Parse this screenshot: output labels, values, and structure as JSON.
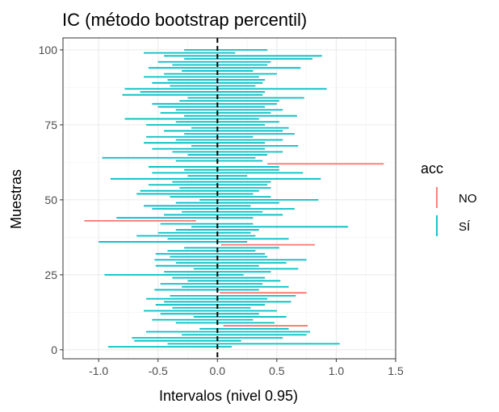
{
  "chart_data": {
    "type": "interval",
    "title": "IC (método bootstrap percentil)",
    "xlabel": "Intervalos (nivel 0.95)",
    "ylabel": "Muestras",
    "xlim": [
      -1.3,
      1.5
    ],
    "ylim": [
      -3,
      104
    ],
    "x_ticks": [
      -1.0,
      -0.5,
      0.0,
      0.5,
      1.0,
      1.5
    ],
    "x_tick_labels": [
      "-1.0",
      "-0.5",
      "0.0",
      "0.5",
      "1.0",
      "1.5"
    ],
    "y_ticks": [
      0,
      25,
      50,
      75,
      100
    ],
    "y_tick_labels": [
      "0",
      "25",
      "50",
      "75",
      "100"
    ],
    "reference_line_x": 0.0,
    "grid": true,
    "legend": {
      "title": "acc",
      "position": "right",
      "entries": [
        {
          "label": "NO",
          "color": "#F8766D"
        },
        {
          "label": "SÍ",
          "color": "#00BFC4"
        }
      ]
    },
    "intervals": [
      {
        "sample": 1,
        "low": -0.92,
        "high": 0.12,
        "acc": "SÍ"
      },
      {
        "sample": 2,
        "low": -0.42,
        "high": 1.03,
        "acc": "SÍ"
      },
      {
        "sample": 3,
        "low": -0.7,
        "high": 0.2,
        "acc": "SÍ"
      },
      {
        "sample": 4,
        "low": -0.72,
        "high": 0.55,
        "acc": "SÍ"
      },
      {
        "sample": 5,
        "low": -0.3,
        "high": 0.75,
        "acc": "SÍ"
      },
      {
        "sample": 6,
        "low": -0.6,
        "high": 0.78,
        "acc": "SÍ"
      },
      {
        "sample": 7,
        "low": -0.15,
        "high": 0.6,
        "acc": "SÍ"
      },
      {
        "sample": 8,
        "low": 0.05,
        "high": 0.76,
        "acc": "NO"
      },
      {
        "sample": 9,
        "low": -0.35,
        "high": 0.48,
        "acc": "SÍ"
      },
      {
        "sample": 10,
        "low": -0.55,
        "high": 0.3,
        "acc": "SÍ"
      },
      {
        "sample": 11,
        "low": -0.2,
        "high": 0.58,
        "acc": "SÍ"
      },
      {
        "sample": 12,
        "low": -0.48,
        "high": 0.35,
        "acc": "SÍ"
      },
      {
        "sample": 13,
        "low": -0.62,
        "high": 0.5,
        "acc": "SÍ"
      },
      {
        "sample": 14,
        "low": -0.38,
        "high": 0.28,
        "acc": "SÍ"
      },
      {
        "sample": 15,
        "low": -0.52,
        "high": 0.4,
        "acc": "SÍ"
      },
      {
        "sample": 16,
        "low": -0.45,
        "high": 0.62,
        "acc": "SÍ"
      },
      {
        "sample": 17,
        "low": -0.6,
        "high": 0.42,
        "acc": "SÍ"
      },
      {
        "sample": 18,
        "low": -0.4,
        "high": 0.66,
        "acc": "SÍ"
      },
      {
        "sample": 19,
        "low": 0.02,
        "high": 0.75,
        "acc": "NO"
      },
      {
        "sample": 20,
        "low": -0.53,
        "high": 0.35,
        "acc": "SÍ"
      },
      {
        "sample": 21,
        "low": -0.3,
        "high": 0.6,
        "acc": "SÍ"
      },
      {
        "sample": 22,
        "low": -0.48,
        "high": 0.38,
        "acc": "SÍ"
      },
      {
        "sample": 23,
        "low": -0.25,
        "high": 0.53,
        "acc": "SÍ"
      },
      {
        "sample": 24,
        "low": -0.38,
        "high": 0.4,
        "acc": "SÍ"
      },
      {
        "sample": 25,
        "low": -0.95,
        "high": 0.22,
        "acc": "SÍ"
      },
      {
        "sample": 26,
        "low": -0.45,
        "high": 0.45,
        "acc": "SÍ"
      },
      {
        "sample": 27,
        "low": -0.2,
        "high": 0.68,
        "acc": "SÍ"
      },
      {
        "sample": 28,
        "low": -0.52,
        "high": 0.35,
        "acc": "SÍ"
      },
      {
        "sample": 29,
        "low": -0.35,
        "high": 0.58,
        "acc": "SÍ"
      },
      {
        "sample": 30,
        "low": -0.53,
        "high": 0.75,
        "acc": "SÍ"
      },
      {
        "sample": 31,
        "low": -0.4,
        "high": 0.42,
        "acc": "SÍ"
      },
      {
        "sample": 32,
        "low": -0.52,
        "high": 0.4,
        "acc": "SÍ"
      },
      {
        "sample": 33,
        "low": -0.42,
        "high": 0.32,
        "acc": "SÍ"
      },
      {
        "sample": 34,
        "low": -0.28,
        "high": 0.52,
        "acc": "SÍ"
      },
      {
        "sample": 35,
        "low": 0.03,
        "high": 0.82,
        "acc": "NO"
      },
      {
        "sample": 36,
        "low": -1.0,
        "high": 0.25,
        "acc": "SÍ"
      },
      {
        "sample": 37,
        "low": -0.42,
        "high": 0.6,
        "acc": "SÍ"
      },
      {
        "sample": 38,
        "low": -0.68,
        "high": 0.32,
        "acc": "SÍ"
      },
      {
        "sample": 39,
        "low": -0.5,
        "high": 0.28,
        "acc": "SÍ"
      },
      {
        "sample": 40,
        "low": -0.35,
        "high": 0.35,
        "acc": "SÍ"
      },
      {
        "sample": 41,
        "low": -0.22,
        "high": 1.1,
        "acc": "SÍ"
      },
      {
        "sample": 42,
        "low": -0.48,
        "high": 0.3,
        "acc": "SÍ"
      },
      {
        "sample": 43,
        "low": -1.12,
        "high": -0.18,
        "acc": "NO"
      },
      {
        "sample": 44,
        "low": -0.85,
        "high": 0.3,
        "acc": "SÍ"
      },
      {
        "sample": 45,
        "low": -0.45,
        "high": 0.55,
        "acc": "SÍ"
      },
      {
        "sample": 46,
        "low": -0.3,
        "high": 0.38,
        "acc": "SÍ"
      },
      {
        "sample": 47,
        "low": -0.55,
        "high": 0.65,
        "acc": "SÍ"
      },
      {
        "sample": 48,
        "low": -0.62,
        "high": 0.28,
        "acc": "SÍ"
      },
      {
        "sample": 49,
        "low": -0.35,
        "high": 0.52,
        "acc": "SÍ"
      },
      {
        "sample": 50,
        "low": -0.15,
        "high": 0.85,
        "acc": "SÍ"
      },
      {
        "sample": 51,
        "low": -0.4,
        "high": 0.45,
        "acc": "SÍ"
      },
      {
        "sample": 52,
        "low": -0.68,
        "high": 0.3,
        "acc": "SÍ"
      },
      {
        "sample": 53,
        "low": -0.65,
        "high": 0.35,
        "acc": "SÍ"
      },
      {
        "sample": 54,
        "low": -0.32,
        "high": 0.45,
        "acc": "SÍ"
      },
      {
        "sample": 55,
        "low": -0.58,
        "high": 0.42,
        "acc": "SÍ"
      },
      {
        "sample": 56,
        "low": -0.38,
        "high": 0.45,
        "acc": "SÍ"
      },
      {
        "sample": 57,
        "low": -0.9,
        "high": 0.87,
        "acc": "SÍ"
      },
      {
        "sample": 58,
        "low": -0.25,
        "high": 0.25,
        "acc": "SÍ"
      },
      {
        "sample": 59,
        "low": -0.55,
        "high": 0.72,
        "acc": "SÍ"
      },
      {
        "sample": 60,
        "low": -0.28,
        "high": 0.52,
        "acc": "SÍ"
      },
      {
        "sample": 61,
        "low": -0.58,
        "high": 0.52,
        "acc": "SÍ"
      },
      {
        "sample": 62,
        "low": 0.42,
        "high": 1.4,
        "acc": "NO"
      },
      {
        "sample": 63,
        "low": -0.35,
        "high": 0.38,
        "acc": "SÍ"
      },
      {
        "sample": 64,
        "low": -0.97,
        "high": 0.32,
        "acc": "SÍ"
      },
      {
        "sample": 65,
        "low": -0.25,
        "high": 0.42,
        "acc": "SÍ"
      },
      {
        "sample": 66,
        "low": -0.38,
        "high": 0.55,
        "acc": "SÍ"
      },
      {
        "sample": 67,
        "low": -0.55,
        "high": 0.4,
        "acc": "SÍ"
      },
      {
        "sample": 68,
        "low": -0.22,
        "high": 0.68,
        "acc": "SÍ"
      },
      {
        "sample": 69,
        "low": -0.62,
        "high": 0.4,
        "acc": "SÍ"
      },
      {
        "sample": 70,
        "low": -0.35,
        "high": 0.55,
        "acc": "SÍ"
      },
      {
        "sample": 71,
        "low": -0.6,
        "high": 0.3,
        "acc": "SÍ"
      },
      {
        "sample": 72,
        "low": -0.28,
        "high": 0.65,
        "acc": "SÍ"
      },
      {
        "sample": 73,
        "low": -0.45,
        "high": 0.55,
        "acc": "SÍ"
      },
      {
        "sample": 74,
        "low": -0.22,
        "high": 0.6,
        "acc": "SÍ"
      },
      {
        "sample": 75,
        "low": -0.6,
        "high": 0.4,
        "acc": "SÍ"
      },
      {
        "sample": 76,
        "low": -0.35,
        "high": 0.52,
        "acc": "SÍ"
      },
      {
        "sample": 77,
        "low": -0.78,
        "high": 0.35,
        "acc": "SÍ"
      },
      {
        "sample": 78,
        "low": -0.28,
        "high": 0.67,
        "acc": "SÍ"
      },
      {
        "sample": 79,
        "low": -0.48,
        "high": 0.45,
        "acc": "SÍ"
      },
      {
        "sample": 80,
        "low": -0.35,
        "high": 0.55,
        "acc": "SÍ"
      },
      {
        "sample": 81,
        "low": -0.5,
        "high": 0.4,
        "acc": "SÍ"
      },
      {
        "sample": 82,
        "low": -0.55,
        "high": 0.5,
        "acc": "SÍ"
      },
      {
        "sample": 83,
        "low": -0.32,
        "high": 0.52,
        "acc": "SÍ"
      },
      {
        "sample": 84,
        "low": -0.25,
        "high": 0.73,
        "acc": "SÍ"
      },
      {
        "sample": 85,
        "low": -0.8,
        "high": 0.38,
        "acc": "SÍ"
      },
      {
        "sample": 86,
        "low": -0.65,
        "high": 0.4,
        "acc": "SÍ"
      },
      {
        "sample": 87,
        "low": -0.78,
        "high": 0.92,
        "acc": "SÍ"
      },
      {
        "sample": 88,
        "low": -0.4,
        "high": 0.32,
        "acc": "SÍ"
      },
      {
        "sample": 89,
        "low": -0.55,
        "high": 0.38,
        "acc": "SÍ"
      },
      {
        "sample": 90,
        "low": -0.42,
        "high": 0.4,
        "acc": "SÍ"
      },
      {
        "sample": 91,
        "low": -0.62,
        "high": 0.35,
        "acc": "SÍ"
      },
      {
        "sample": 92,
        "low": -0.45,
        "high": 0.5,
        "acc": "SÍ"
      },
      {
        "sample": 93,
        "low": -0.3,
        "high": 0.3,
        "acc": "SÍ"
      },
      {
        "sample": 94,
        "low": -0.58,
        "high": 0.7,
        "acc": "SÍ"
      },
      {
        "sample": 95,
        "low": -0.38,
        "high": 0.42,
        "acc": "SÍ"
      },
      {
        "sample": 96,
        "low": -0.5,
        "high": 0.45,
        "acc": "SÍ"
      },
      {
        "sample": 97,
        "low": -0.28,
        "high": 0.8,
        "acc": "SÍ"
      },
      {
        "sample": 98,
        "low": -0.45,
        "high": 0.88,
        "acc": "SÍ"
      },
      {
        "sample": 99,
        "low": -0.62,
        "high": 0.15,
        "acc": "SÍ"
      },
      {
        "sample": 100,
        "low": -0.28,
        "high": 0.42,
        "acc": "SÍ"
      }
    ]
  }
}
